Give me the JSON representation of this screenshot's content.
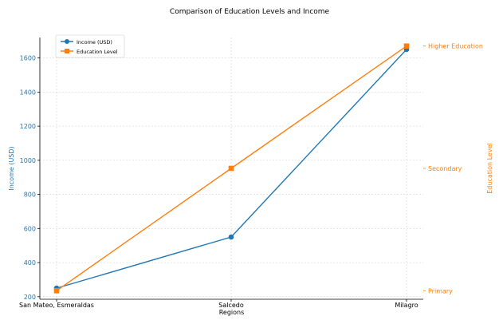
{
  "chart_data": {
    "type": "line",
    "title": "Comparison of Education Levels and Income",
    "xlabel": "Regions",
    "categories": [
      "San Mateo, Esmeraldas",
      "Salcedo",
      "Milagro"
    ],
    "y_left": {
      "label": "Income (USD)",
      "ylim": [
        185,
        1720
      ],
      "ticks": [
        200,
        400,
        600,
        800,
        1000,
        1200,
        1400,
        1600
      ],
      "color": "#1f77b4"
    },
    "y_right": {
      "label": "Education Level",
      "ylim": [
        0.93,
        3.07
      ],
      "ticks": [
        1,
        2,
        3
      ],
      "tick_labels": [
        "Primary",
        "Secondary",
        "Higher Education"
      ],
      "color": "#ff7f0e"
    },
    "series": [
      {
        "name": "Income (USD)",
        "axis": "left",
        "marker": "circle",
        "color": "#1f77b4",
        "values": [
          250,
          550,
          1650
        ]
      },
      {
        "name": "Education Level",
        "axis": "right",
        "marker": "square",
        "color": "#ff7f0e",
        "values": [
          1,
          2,
          3
        ]
      }
    ],
    "grid": true,
    "legend_position": "top-left"
  }
}
